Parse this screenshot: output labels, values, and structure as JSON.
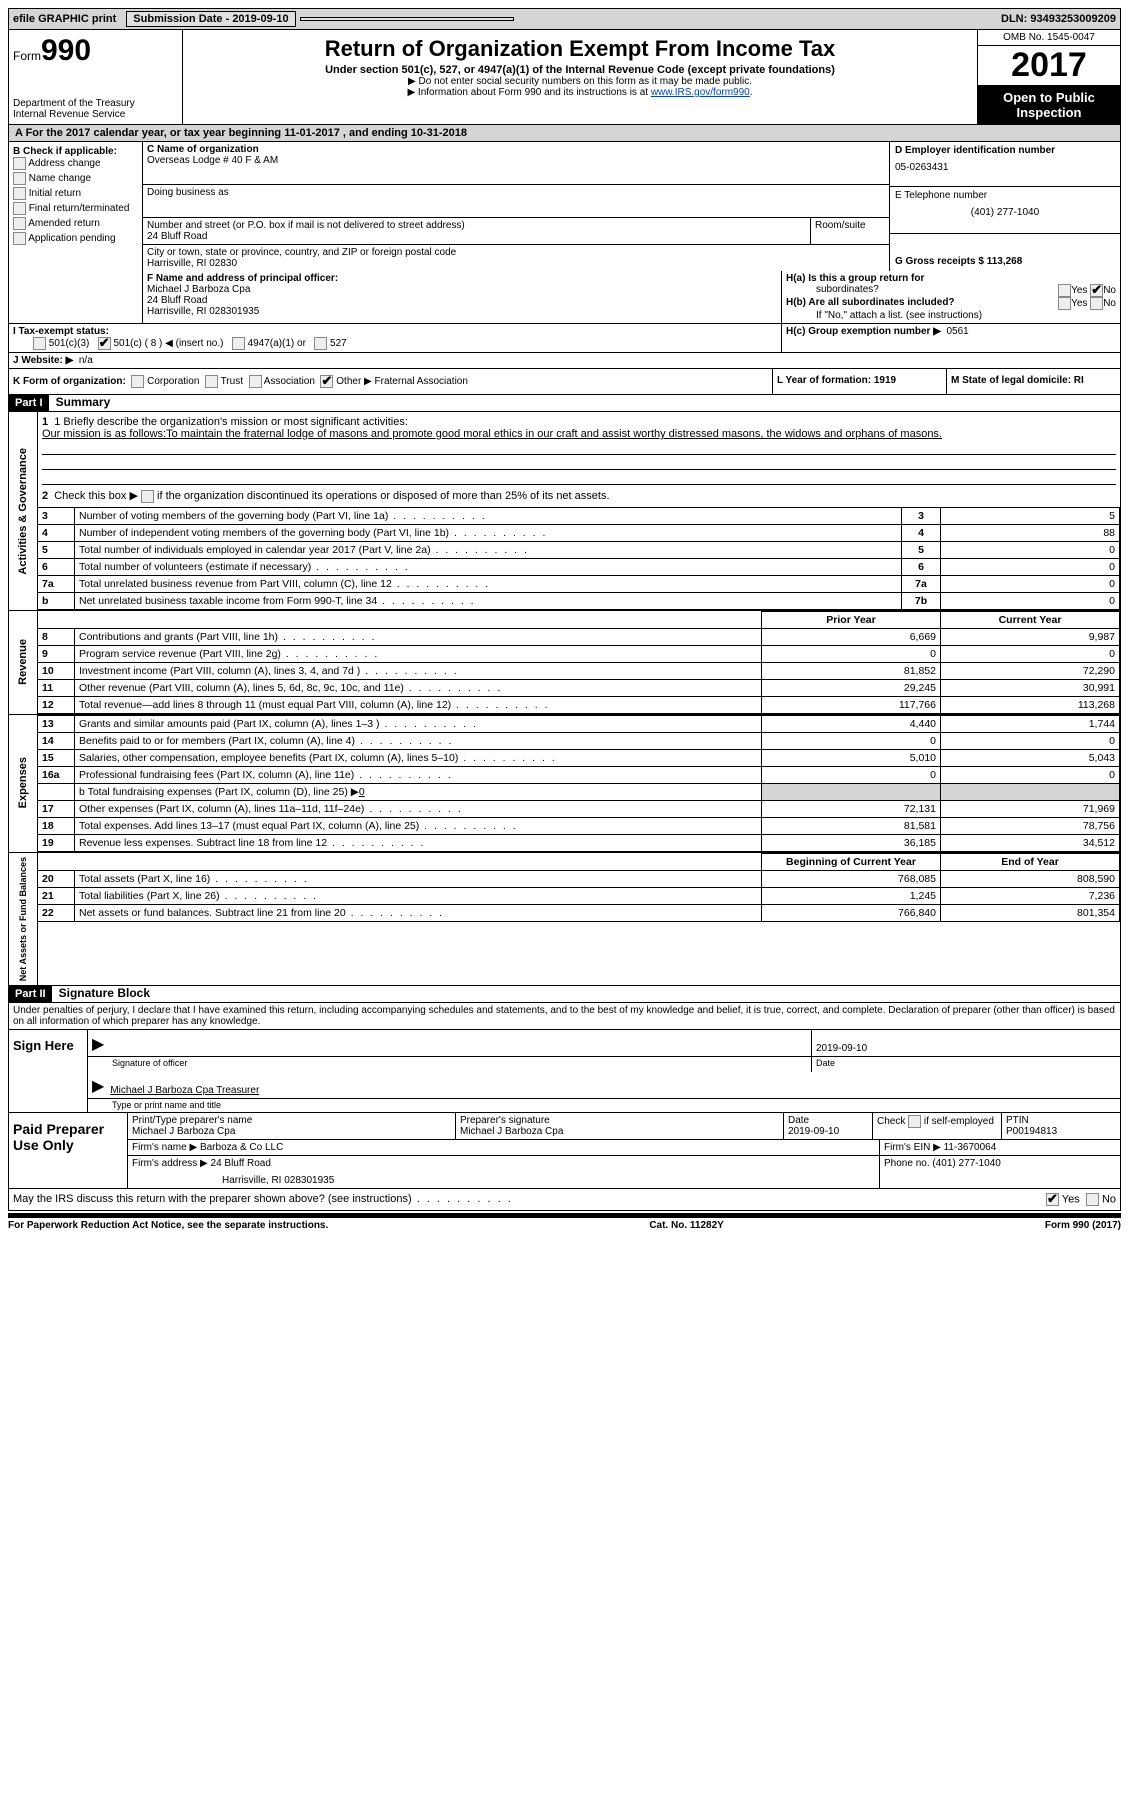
{
  "topbar": {
    "efile": "efile GRAPHIC print",
    "submission_label": "Submission Date - 2019-09-10",
    "dln": "DLN: 93493253009209"
  },
  "header": {
    "form_word": "Form",
    "form_number": "990",
    "dept": "Department of the Treasury",
    "irs": "Internal Revenue Service",
    "title": "Return of Organization Exempt From Income Tax",
    "subtitle": "Under section 501(c), 527, or 4947(a)(1) of the Internal Revenue Code (except private foundations)",
    "bullet1": "▶ Do not enter social security numbers on this form as it may be made public.",
    "bullet2_pre": "▶ Information about Form 990 and its instructions is at ",
    "bullet2_link": "www.IRS.gov/form990",
    "omb": "OMB No. 1545-0047",
    "year": "2017",
    "open": "Open to Public Inspection"
  },
  "rowA": {
    "text": "A   For the 2017 calendar year, or tax year beginning 11-01-2017   , and ending 10-31-2018"
  },
  "sectionB": {
    "b_label": "B Check if applicable:",
    "checks": [
      "Address change",
      "Name change",
      "Initial return",
      "Final return/terminated",
      "Amended return",
      "Application pending"
    ],
    "c_label": "C Name of organization",
    "c_name": "Overseas Lodge # 40 F & AM",
    "dba_label": "Doing business as",
    "street_label": "Number and street (or P.O. box if mail is not delivered to street address)",
    "street": "24 Bluff Road",
    "suite_label": "Room/suite",
    "city_label": "City or town, state or province, country, and ZIP or foreign postal code",
    "city": "Harrisville, RI  02830",
    "d_label": "D Employer identification number",
    "ein": "05-0263431",
    "e_label": "E Telephone number",
    "phone": "(401) 277-1040",
    "g_label": "G Gross receipts $ 113,268"
  },
  "sectionF": {
    "f_label": "F  Name and address of principal officer:",
    "f_name": "Michael J Barboza Cpa",
    "f_addr1": "24 Bluff Road",
    "f_addr2": "Harrisville, RI  028301935",
    "ha_label": "H(a)  Is this a group return for",
    "ha_sub": "subordinates?",
    "hb_label": "H(b)  Are all subordinates included?",
    "hb_note": "If \"No,\" attach a list. (see instructions)",
    "hc_label": "H(c)  Group exemption number ▶",
    "hc_val": "0561",
    "yes": "Yes",
    "no": "No"
  },
  "rowI": {
    "label": "I   Tax-exempt status:",
    "opt1": "501(c)(3)",
    "opt2": "501(c) ( 8 ) ◀ (insert no.)",
    "opt3": "4947(a)(1) or",
    "opt4": "527"
  },
  "rowJ": {
    "label": "J   Website: ▶",
    "val": "n/a"
  },
  "rowK": {
    "label": "K Form of organization:",
    "corp": "Corporation",
    "trust": "Trust",
    "assoc": "Association",
    "other": "Other ▶",
    "other_val": "Fraternal Association",
    "l_label": "L Year of formation: 1919",
    "m_label": "M State of legal domicile: RI"
  },
  "part1": {
    "header": "Part I",
    "title": "Summary",
    "line1_label": "1  Briefly describe the organization's mission or most significant activities:",
    "mission": "Our mission is as follows:To maintain the fraternal lodge of masons and promote good moral ethics in our craft and assist worthy distressed masons, the widows and orphans of masons.",
    "line2": "2   Check this box ▶         if the organization discontinued its operations or disposed of more than 25% of its net assets.",
    "vlabel1": "Activities & Governance",
    "vlabel2": "Revenue",
    "vlabel3": "Expenses",
    "vlabel4": "Net Assets or Fund Balances",
    "rows_gov": [
      {
        "n": "3",
        "t": "Number of voting members of the governing body (Part VI, line 1a)",
        "ln": "3",
        "v": "5"
      },
      {
        "n": "4",
        "t": "Number of independent voting members of the governing body (Part VI, line 1b)",
        "ln": "4",
        "v": "88"
      },
      {
        "n": "5",
        "t": "Total number of individuals employed in calendar year 2017 (Part V, line 2a)",
        "ln": "5",
        "v": "0"
      },
      {
        "n": "6",
        "t": "Total number of volunteers (estimate if necessary)",
        "ln": "6",
        "v": "0"
      },
      {
        "n": "7a",
        "t": "Total unrelated business revenue from Part VIII, column (C), line 12",
        "ln": "7a",
        "v": "0"
      },
      {
        "n": "b",
        "t": "Net unrelated business taxable income from Form 990-T, line 34",
        "ln": "7b",
        "v": "0"
      }
    ],
    "prior_year": "Prior Year",
    "current_year": "Current Year",
    "rows_rev": [
      {
        "n": "8",
        "t": "Contributions and grants (Part VIII, line 1h)",
        "p": "6,669",
        "c": "9,987"
      },
      {
        "n": "9",
        "t": "Program service revenue (Part VIII, line 2g)",
        "p": "0",
        "c": "0"
      },
      {
        "n": "10",
        "t": "Investment income (Part VIII, column (A), lines 3, 4, and 7d )",
        "p": "81,852",
        "c": "72,290"
      },
      {
        "n": "11",
        "t": "Other revenue (Part VIII, column (A), lines 5, 6d, 8c, 9c, 10c, and 11e)",
        "p": "29,245",
        "c": "30,991"
      },
      {
        "n": "12",
        "t": "Total revenue—add lines 8 through 11 (must equal Part VIII, column (A), line 12)",
        "p": "117,766",
        "c": "113,268"
      }
    ],
    "rows_exp": [
      {
        "n": "13",
        "t": "Grants and similar amounts paid (Part IX, column (A), lines 1–3 )",
        "p": "4,440",
        "c": "1,744"
      },
      {
        "n": "14",
        "t": "Benefits paid to or for members (Part IX, column (A), line 4)",
        "p": "0",
        "c": "0"
      },
      {
        "n": "15",
        "t": "Salaries, other compensation, employee benefits (Part IX, column (A), lines 5–10)",
        "p": "5,010",
        "c": "5,043"
      },
      {
        "n": "16a",
        "t": "Professional fundraising fees (Part IX, column (A), line 11e)",
        "p": "0",
        "c": "0"
      }
    ],
    "row16b_label": "b   Total fundraising expenses (Part IX, column (D), line 25) ▶",
    "row16b_val": "0",
    "rows_exp2": [
      {
        "n": "17",
        "t": "Other expenses (Part IX, column (A), lines 11a–11d, 11f–24e)",
        "p": "72,131",
        "c": "71,969"
      },
      {
        "n": "18",
        "t": "Total expenses. Add lines 13–17 (must equal Part IX, column (A), line 25)",
        "p": "81,581",
        "c": "78,756"
      },
      {
        "n": "19",
        "t": "Revenue less expenses. Subtract line 18 from line 12",
        "p": "36,185",
        "c": "34,512"
      }
    ],
    "boy": "Beginning of Current Year",
    "eoy": "End of Year",
    "rows_net": [
      {
        "n": "20",
        "t": "Total assets (Part X, line 16)",
        "p": "768,085",
        "c": "808,590"
      },
      {
        "n": "21",
        "t": "Total liabilities (Part X, line 26)",
        "p": "1,245",
        "c": "7,236"
      },
      {
        "n": "22",
        "t": "Net assets or fund balances. Subtract line 21 from line 20",
        "p": "766,840",
        "c": "801,354"
      }
    ]
  },
  "part2": {
    "header": "Part II",
    "title": "Signature Block",
    "decl": "Under penalties of perjury, I declare that I have examined this return, including accompanying schedules and statements, and to the best of my knowledge and belief, it is true, correct, and complete. Declaration of preparer (other than officer) is based on all information of which preparer has any knowledge.",
    "sign_here": "Sign Here",
    "sig_officer": "Signature of officer",
    "sig_date": "2019-09-10",
    "date_label": "Date",
    "officer_name": "Michael J Barboza Cpa Treasurer",
    "type_name": "Type or print name and title",
    "paid": "Paid Preparer Use Only",
    "prep_name_label": "Print/Type preparer's name",
    "prep_name": "Michael J Barboza Cpa",
    "prep_sig_label": "Preparer's signature",
    "prep_sig": "Michael J Barboza Cpa",
    "prep_date": "2019-09-10",
    "check_self": "Check         if self-employed",
    "ptin_label": "PTIN",
    "ptin": "P00194813",
    "firm_name_label": "Firm's name      ▶",
    "firm_name": "Barboza & Co LLC",
    "firm_ein_label": "Firm's EIN ▶",
    "firm_ein": "11-3670064",
    "firm_addr_label": "Firm's address ▶",
    "firm_addr": "24 Bluff Road",
    "firm_city": "Harrisville, RI  028301935",
    "firm_phone_label": "Phone no.",
    "firm_phone": "(401) 277-1040",
    "discuss": "May the IRS discuss this return with the preparer shown above? (see instructions)"
  },
  "footer": {
    "left": "For Paperwork Reduction Act Notice, see the separate instructions.",
    "mid": "Cat. No. 11282Y",
    "right": "Form 990 (2017)"
  }
}
